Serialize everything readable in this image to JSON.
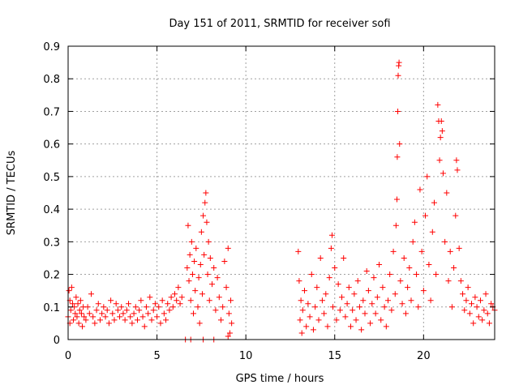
{
  "chart_data": {
    "type": "scatter",
    "title": "Day 151 of 2011, SRMTID for receiver sofi",
    "xlabel": "GPS time / hours",
    "ylabel": "SRMTID / TECUs",
    "xlim": [
      0,
      24
    ],
    "ylim": [
      0,
      0.9
    ],
    "xticks": [
      0,
      5,
      10,
      15,
      20
    ],
    "xtick_labels": [
      "0",
      "5",
      "10",
      "15",
      "20"
    ],
    "yticks": [
      0,
      0.1,
      0.2,
      0.3,
      0.4,
      0.5,
      0.6,
      0.7,
      0.8,
      0.9
    ],
    "ytick_labels": [
      "0",
      "0.1",
      "0.2",
      "0.3",
      "0.4",
      "0.5",
      "0.6",
      "0.7",
      "0.8",
      "0.9"
    ],
    "grid": true,
    "marker": "+",
    "series": [
      {
        "name": "SRMTID",
        "color": "#ff0000",
        "points": [
          [
            0.0,
            0.07
          ],
          [
            0.05,
            0.15
          ],
          [
            0.1,
            0.12
          ],
          [
            0.1,
            0.05
          ],
          [
            0.15,
            0.09
          ],
          [
            0.2,
            0.16
          ],
          [
            0.25,
            0.11
          ],
          [
            0.3,
            0.06
          ],
          [
            0.35,
            0.1
          ],
          [
            0.4,
            0.08
          ],
          [
            0.45,
            0.13
          ],
          [
            0.5,
            0.07
          ],
          [
            0.55,
            0.11
          ],
          [
            0.6,
            0.05
          ],
          [
            0.65,
            0.09
          ],
          [
            0.7,
            0.12
          ],
          [
            0.75,
            0.08
          ],
          [
            0.8,
            0.04
          ],
          [
            0.85,
            0.1
          ],
          [
            0.9,
            0.07
          ],
          [
            1.0,
            0.06
          ],
          [
            1.1,
            0.1
          ],
          [
            1.2,
            0.08
          ],
          [
            1.3,
            0.14
          ],
          [
            1.4,
            0.07
          ],
          [
            1.5,
            0.05
          ],
          [
            1.6,
            0.09
          ],
          [
            1.7,
            0.11
          ],
          [
            1.8,
            0.06
          ],
          [
            1.9,
            0.08
          ],
          [
            2.0,
            0.1
          ],
          [
            2.1,
            0.07
          ],
          [
            2.2,
            0.09
          ],
          [
            2.3,
            0.05
          ],
          [
            2.4,
            0.12
          ],
          [
            2.5,
            0.08
          ],
          [
            2.6,
            0.06
          ],
          [
            2.7,
            0.11
          ],
          [
            2.8,
            0.09
          ],
          [
            2.9,
            0.07
          ],
          [
            3.0,
            0.1
          ],
          [
            3.1,
            0.08
          ],
          [
            3.2,
            0.06
          ],
          [
            3.3,
            0.09
          ],
          [
            3.4,
            0.11
          ],
          [
            3.5,
            0.07
          ],
          [
            3.6,
            0.05
          ],
          [
            3.7,
            0.08
          ],
          [
            3.8,
            0.1
          ],
          [
            3.9,
            0.06
          ],
          [
            4.0,
            0.09
          ],
          [
            4.1,
            0.12
          ],
          [
            4.2,
            0.07
          ],
          [
            4.3,
            0.04
          ],
          [
            4.4,
            0.1
          ],
          [
            4.5,
            0.08
          ],
          [
            4.6,
            0.13
          ],
          [
            4.7,
            0.06
          ],
          [
            4.8,
            0.09
          ],
          [
            4.9,
            0.11
          ],
          [
            5.0,
            0.07
          ],
          [
            5.1,
            0.1
          ],
          [
            5.2,
            0.05
          ],
          [
            5.3,
            0.12
          ],
          [
            5.4,
            0.08
          ],
          [
            5.5,
            0.06
          ],
          [
            5.6,
            0.11
          ],
          [
            5.7,
            0.09
          ],
          [
            5.8,
            0.13
          ],
          [
            5.9,
            0.1
          ],
          [
            6.0,
            0.14
          ],
          [
            6.1,
            0.12
          ],
          [
            6.2,
            0.16
          ],
          [
            6.3,
            0.11
          ],
          [
            6.4,
            0.13
          ],
          [
            6.7,
            0.22
          ],
          [
            6.75,
            0.35
          ],
          [
            6.8,
            0.18
          ],
          [
            6.85,
            0.26
          ],
          [
            6.9,
            0.12
          ],
          [
            6.95,
            0.3
          ],
          [
            7.0,
            0.2
          ],
          [
            7.05,
            0.08
          ],
          [
            7.1,
            0.24
          ],
          [
            7.15,
            0.15
          ],
          [
            7.2,
            0.28
          ],
          [
            7.3,
            0.1
          ],
          [
            7.35,
            0.19
          ],
          [
            7.4,
            0.05
          ],
          [
            7.45,
            0.23
          ],
          [
            7.5,
            0.33
          ],
          [
            7.55,
            0.14
          ],
          [
            7.6,
            0.38
          ],
          [
            7.65,
            0.26
          ],
          [
            7.7,
            0.42
          ],
          [
            7.75,
            0.45
          ],
          [
            7.8,
            0.36
          ],
          [
            7.85,
            0.2
          ],
          [
            7.9,
            0.3
          ],
          [
            7.95,
            0.12
          ],
          [
            8.0,
            0.25
          ],
          [
            8.1,
            0.17
          ],
          [
            8.2,
            0.22
          ],
          [
            8.3,
            0.09
          ],
          [
            8.4,
            0.19
          ],
          [
            8.5,
            0.13
          ],
          [
            8.6,
            0.06
          ],
          [
            8.7,
            0.1
          ],
          [
            8.8,
            0.24
          ],
          [
            8.9,
            0.16
          ],
          [
            9.0,
            0.28
          ],
          [
            9.05,
            0.08
          ],
          [
            9.1,
            0.02
          ],
          [
            9.15,
            0.12
          ],
          [
            9.2,
            0.05
          ],
          [
            6.6,
            0.0
          ],
          [
            6.9,
            0.0
          ],
          [
            7.6,
            0.0
          ],
          [
            8.2,
            0.0
          ],
          [
            9.0,
            0.01
          ],
          [
            12.95,
            0.27
          ],
          [
            13.0,
            0.18
          ],
          [
            13.05,
            0.06
          ],
          [
            13.1,
            0.12
          ],
          [
            13.15,
            0.02
          ],
          [
            13.2,
            0.09
          ],
          [
            13.3,
            0.15
          ],
          [
            13.4,
            0.04
          ],
          [
            13.5,
            0.11
          ],
          [
            13.6,
            0.07
          ],
          [
            13.7,
            0.2
          ],
          [
            13.8,
            0.03
          ],
          [
            13.9,
            0.1
          ],
          [
            14.0,
            0.16
          ],
          [
            14.1,
            0.06
          ],
          [
            14.2,
            0.25
          ],
          [
            14.3,
            0.12
          ],
          [
            14.4,
            0.08
          ],
          [
            14.5,
            0.14
          ],
          [
            14.6,
            0.04
          ],
          [
            14.7,
            0.19
          ],
          [
            14.8,
            0.28
          ],
          [
            14.85,
            0.32
          ],
          [
            14.9,
            0.1
          ],
          [
            15.0,
            0.22
          ],
          [
            15.1,
            0.06
          ],
          [
            15.2,
            0.17
          ],
          [
            15.3,
            0.09
          ],
          [
            15.4,
            0.13
          ],
          [
            15.5,
            0.25
          ],
          [
            15.6,
            0.07
          ],
          [
            15.7,
            0.11
          ],
          [
            15.8,
            0.16
          ],
          [
            15.9,
            0.04
          ],
          [
            16.0,
            0.09
          ],
          [
            16.1,
            0.14
          ],
          [
            16.2,
            0.06
          ],
          [
            16.3,
            0.18
          ],
          [
            16.4,
            0.1
          ],
          [
            16.5,
            0.03
          ],
          [
            16.6,
            0.12
          ],
          [
            16.7,
            0.08
          ],
          [
            16.8,
            0.21
          ],
          [
            16.9,
            0.15
          ],
          [
            17.0,
            0.05
          ],
          [
            17.1,
            0.11
          ],
          [
            17.2,
            0.19
          ],
          [
            17.3,
            0.08
          ],
          [
            17.4,
            0.13
          ],
          [
            17.5,
            0.23
          ],
          [
            17.6,
            0.06
          ],
          [
            17.7,
            0.16
          ],
          [
            17.8,
            0.1
          ],
          [
            17.9,
            0.04
          ],
          [
            18.0,
            0.12
          ],
          [
            18.1,
            0.2
          ],
          [
            18.2,
            0.09
          ],
          [
            18.3,
            0.27
          ],
          [
            18.4,
            0.14
          ],
          [
            18.45,
            0.35
          ],
          [
            18.5,
            0.43
          ],
          [
            18.52,
            0.56
          ],
          [
            18.55,
            0.7
          ],
          [
            18.57,
            0.81
          ],
          [
            18.6,
            0.84
          ],
          [
            18.62,
            0.85
          ],
          [
            18.65,
            0.6
          ],
          [
            18.7,
            0.18
          ],
          [
            18.8,
            0.11
          ],
          [
            18.9,
            0.25
          ],
          [
            19.0,
            0.08
          ],
          [
            19.1,
            0.16
          ],
          [
            19.2,
            0.22
          ],
          [
            19.3,
            0.12
          ],
          [
            19.4,
            0.3
          ],
          [
            19.5,
            0.36
          ],
          [
            19.6,
            0.2
          ],
          [
            19.7,
            0.1
          ],
          [
            19.8,
            0.46
          ],
          [
            19.9,
            0.27
          ],
          [
            20.0,
            0.15
          ],
          [
            20.1,
            0.38
          ],
          [
            20.2,
            0.5
          ],
          [
            20.3,
            0.23
          ],
          [
            20.4,
            0.12
          ],
          [
            20.5,
            0.33
          ],
          [
            20.6,
            0.42
          ],
          [
            20.7,
            0.2
          ],
          [
            20.8,
            0.72
          ],
          [
            20.85,
            0.67
          ],
          [
            20.9,
            0.55
          ],
          [
            20.95,
            0.62
          ],
          [
            21.0,
            0.67
          ],
          [
            21.05,
            0.64
          ],
          [
            21.1,
            0.51
          ],
          [
            21.2,
            0.3
          ],
          [
            21.3,
            0.45
          ],
          [
            21.4,
            0.18
          ],
          [
            21.5,
            0.27
          ],
          [
            21.6,
            0.1
          ],
          [
            21.7,
            0.22
          ],
          [
            21.8,
            0.38
          ],
          [
            21.85,
            0.55
          ],
          [
            21.9,
            0.52
          ],
          [
            22.0,
            0.28
          ],
          [
            22.1,
            0.18
          ],
          [
            22.2,
            0.14
          ],
          [
            22.3,
            0.09
          ],
          [
            22.4,
            0.12
          ],
          [
            22.5,
            0.16
          ],
          [
            22.6,
            0.08
          ],
          [
            22.7,
            0.11
          ],
          [
            22.8,
            0.05
          ],
          [
            22.9,
            0.13
          ],
          [
            23.0,
            0.1
          ],
          [
            23.1,
            0.07
          ],
          [
            23.2,
            0.12
          ],
          [
            23.3,
            0.06
          ],
          [
            23.4,
            0.09
          ],
          [
            23.5,
            0.14
          ],
          [
            23.6,
            0.08
          ],
          [
            23.7,
            0.05
          ],
          [
            23.8,
            0.11
          ],
          [
            23.9,
            0.1
          ],
          [
            24.0,
            0.09
          ]
        ]
      }
    ]
  }
}
